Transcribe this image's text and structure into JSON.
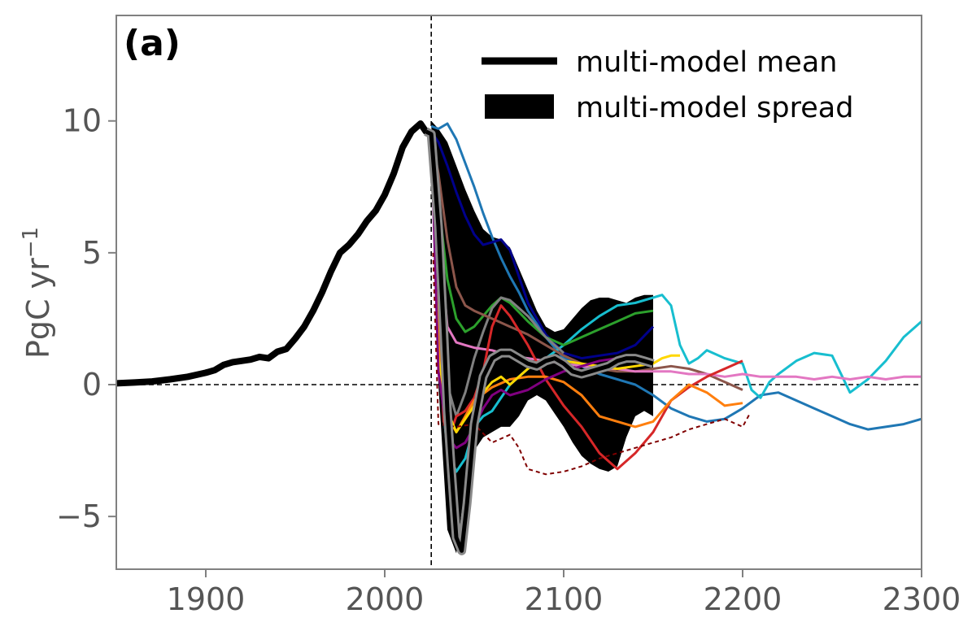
{
  "chart_data": {
    "type": "line",
    "panel_label": "(a)",
    "ylabel_main": "PgC yr",
    "ylabel_sup": "−1",
    "xlim": [
      1850,
      2300
    ],
    "ylim": [
      -7,
      14
    ],
    "x_ticks": [
      1900,
      2000,
      2100,
      2200,
      2300
    ],
    "x_tick_labels": [
      "1900",
      "2000",
      "2100",
      "2200",
      "2300"
    ],
    "y_ticks": [
      -5,
      0,
      5,
      10
    ],
    "y_tick_labels": [
      "−5",
      "0",
      "5",
      "10"
    ],
    "reference_lines": {
      "vertical_x": 2026,
      "horizontal_y": 0
    },
    "legend": {
      "placement": "top-right",
      "entries": [
        {
          "label": "multi-model mean",
          "kind": "line",
          "color": "#000000"
        },
        {
          "label": "multi-model spread",
          "kind": "patch",
          "color": "#000000"
        }
      ]
    },
    "spread": {
      "x": [
        2026,
        2030,
        2035,
        2040,
        2045,
        2050,
        2055,
        2060,
        2065,
        2070,
        2075,
        2080,
        2085,
        2090,
        2095,
        2100,
        2105,
        2110,
        2115,
        2120,
        2125,
        2130,
        2135,
        2140,
        2145,
        2150
      ],
      "upper": [
        10.0,
        9.7,
        9.2,
        8.3,
        7.4,
        6.6,
        5.9,
        5.6,
        5.5,
        5.2,
        4.4,
        3.6,
        2.8,
        2.2,
        2.0,
        2.1,
        2.5,
        2.9,
        3.2,
        3.3,
        3.3,
        3.2,
        3.1,
        3.3,
        3.4,
        3.4
      ],
      "lower": [
        10.0,
        0.0,
        -5.5,
        -6.4,
        -3.8,
        -2.5,
        -2.0,
        -1.8,
        -1.6,
        -1.6,
        -1.2,
        -0.6,
        -0.4,
        -0.6,
        -1.1,
        -1.6,
        -2.2,
        -2.7,
        -3.0,
        -3.2,
        -3.3,
        -3.1,
        -2.0,
        -1.2,
        -1.0,
        -1.2
      ]
    },
    "historical": {
      "x": [
        1850,
        1860,
        1870,
        1880,
        1890,
        1900,
        1905,
        1910,
        1915,
        1920,
        1925,
        1930,
        1935,
        1940,
        1945,
        1950,
        1955,
        1960,
        1965,
        1970,
        1975,
        1980,
        1985,
        1990,
        1995,
        2000,
        2005,
        2010,
        2015,
        2020,
        2023
      ],
      "y": [
        0.05,
        0.08,
        0.12,
        0.2,
        0.3,
        0.45,
        0.55,
        0.75,
        0.85,
        0.9,
        0.95,
        1.05,
        1.0,
        1.25,
        1.35,
        1.75,
        2.2,
        2.8,
        3.5,
        4.3,
        5.0,
        5.3,
        5.7,
        6.2,
        6.6,
        7.2,
        8.0,
        9.0,
        9.6,
        9.9,
        9.6
      ]
    },
    "series": [
      {
        "color": "#1f77b4",
        "x": [
          2026,
          2030,
          2035,
          2040,
          2045,
          2050,
          2055,
          2060,
          2065,
          2070,
          2075,
          2080,
          2090,
          2100,
          2110,
          2120,
          2130,
          2140,
          2150,
          2160,
          2170,
          2180,
          2190,
          2200,
          2210,
          2220,
          2230,
          2240,
          2250,
          2260,
          2270,
          2280,
          2290,
          2300
        ],
        "y": [
          9.8,
          9.7,
          9.9,
          9.3,
          8.4,
          7.5,
          6.5,
          5.6,
          4.8,
          4.1,
          3.5,
          2.8,
          1.8,
          1.0,
          0.7,
          0.4,
          0.2,
          0.0,
          -0.4,
          -0.9,
          -1.2,
          -1.4,
          -1.3,
          -0.9,
          -0.4,
          -0.3,
          -0.6,
          -0.9,
          -1.2,
          -1.5,
          -1.7,
          -1.6,
          -1.5,
          -1.3
        ]
      },
      {
        "color": "#00008b",
        "x": [
          2026,
          2030,
          2035,
          2040,
          2045,
          2050,
          2055,
          2060,
          2065,
          2070,
          2075,
          2080,
          2090,
          2100,
          2110,
          2120,
          2130,
          2140,
          2150
        ],
        "y": [
          9.6,
          9.2,
          8.3,
          7.3,
          6.4,
          5.7,
          5.3,
          5.4,
          5.5,
          5.1,
          4.1,
          3.1,
          1.9,
          1.2,
          1.0,
          1.1,
          1.2,
          1.5,
          2.2
        ]
      },
      {
        "color": "#17becf",
        "x": [
          2026,
          2030,
          2035,
          2040,
          2045,
          2050,
          2055,
          2060,
          2070,
          2080,
          2090,
          2100,
          2110,
          2120,
          2130,
          2140,
          2150,
          2155,
          2160,
          2165,
          2170,
          2175,
          2180,
          2190,
          2200,
          2205,
          2210,
          2215,
          2220,
          2230,
          2240,
          2250,
          2260,
          2270,
          2280,
          2290,
          2300
        ],
        "y": [
          9.5,
          1.0,
          -2.5,
          -3.3,
          -2.8,
          -1.6,
          -1.2,
          -1.0,
          0.0,
          0.6,
          1.0,
          1.5,
          2.1,
          2.6,
          3.0,
          3.1,
          3.3,
          3.4,
          3.0,
          1.5,
          0.8,
          1.0,
          1.3,
          1.0,
          0.8,
          -0.2,
          -0.5,
          0.1,
          0.4,
          0.9,
          1.2,
          1.1,
          -0.3,
          0.2,
          0.9,
          1.8,
          2.4
        ]
      },
      {
        "color": "#2ca02c",
        "x": [
          2026,
          2030,
          2035,
          2040,
          2045,
          2050,
          2060,
          2065,
          2070,
          2080,
          2090,
          2100,
          2110,
          2120,
          2130,
          2140,
          2150
        ],
        "y": [
          9.5,
          7.0,
          4.0,
          2.5,
          2.0,
          2.2,
          3.0,
          3.3,
          3.1,
          2.4,
          1.8,
          1.5,
          1.8,
          2.1,
          2.4,
          2.7,
          2.8
        ]
      },
      {
        "color": "#808080",
        "x": [
          2026,
          2030,
          2035,
          2040,
          2045,
          2050,
          2055,
          2060,
          2065,
          2070,
          2080,
          2090,
          2100
        ],
        "y": [
          9.4,
          5.0,
          0.0,
          -1.2,
          -0.3,
          1.0,
          2.0,
          2.9,
          3.3,
          3.2,
          2.6,
          1.8,
          1.2
        ]
      },
      {
        "color": "#8c564b",
        "x": [
          2026,
          2030,
          2035,
          2040,
          2045,
          2050,
          2060,
          2070,
          2080,
          2090,
          2100,
          2110,
          2120,
          2130,
          2140,
          2150,
          2160,
          2170,
          2180,
          2190,
          2200
        ],
        "y": [
          9.5,
          8.0,
          5.5,
          3.7,
          3.0,
          2.8,
          2.5,
          2.2,
          1.9,
          1.5,
          1.1,
          0.8,
          0.6,
          0.5,
          0.5,
          0.6,
          0.7,
          0.6,
          0.4,
          0.1,
          -0.2
        ]
      },
      {
        "color": "#e377c2",
        "x": [
          2026,
          2030,
          2035,
          2040,
          2045,
          2050,
          2060,
          2070,
          2080,
          2090,
          2100,
          2110,
          2120,
          2130,
          2140,
          2150,
          2160,
          2170,
          2180,
          2190,
          2200,
          2210,
          2220,
          2230,
          2240,
          2250,
          2260,
          2270,
          2280,
          2290,
          2300
        ],
        "y": [
          9.5,
          6.0,
          2.2,
          1.6,
          1.5,
          1.4,
          1.3,
          1.1,
          1.0,
          0.9,
          0.8,
          0.7,
          0.6,
          0.6,
          0.5,
          0.5,
          0.5,
          0.4,
          0.4,
          0.3,
          0.4,
          0.3,
          0.3,
          0.3,
          0.2,
          0.3,
          0.2,
          0.3,
          0.2,
          0.3,
          0.3
        ]
      },
      {
        "color": "#d62728",
        "x": [
          2026,
          2030,
          2033,
          2036,
          2040,
          2045,
          2050,
          2055,
          2060,
          2065,
          2070,
          2080,
          2090,
          2100,
          2110,
          2120,
          2130,
          2140,
          2150,
          2160,
          2170,
          2180,
          2190,
          2200
        ],
        "y": [
          9.5,
          2.0,
          -1.4,
          -2.0,
          -1.2,
          -1.0,
          -0.5,
          0.5,
          2.2,
          3.0,
          2.6,
          1.5,
          0.2,
          -0.8,
          -1.6,
          -2.6,
          -3.2,
          -2.6,
          -1.8,
          -0.6,
          -0.1,
          0.3,
          0.6,
          0.9
        ]
      },
      {
        "color": "#ff7f0e",
        "x": [
          2026,
          2030,
          2035,
          2040,
          2045,
          2050,
          2060,
          2070,
          2080,
          2090,
          2100,
          2110,
          2120,
          2130,
          2140,
          2150,
          2160,
          2170,
          2180,
          2190,
          2200
        ],
        "y": [
          9.5,
          1.5,
          -1.2,
          -1.8,
          -1.2,
          -0.6,
          -0.1,
          0.2,
          0.3,
          0.3,
          0.1,
          -0.4,
          -1.2,
          -1.4,
          -1.6,
          -1.4,
          -0.6,
          0.0,
          -0.3,
          -0.8,
          -0.7
        ]
      },
      {
        "color": "#ffd700",
        "x": [
          2026,
          2030,
          2035,
          2040,
          2045,
          2050,
          2055,
          2060,
          2065,
          2070,
          2080,
          2090,
          2100,
          2110,
          2120,
          2130,
          2140,
          2150,
          2155,
          2160,
          2165
        ],
        "y": [
          9.5,
          1.0,
          -1.0,
          -1.8,
          -1.3,
          -0.8,
          -0.3,
          0.1,
          0.3,
          0.0,
          0.6,
          1.0,
          0.9,
          0.8,
          0.7,
          0.6,
          0.7,
          0.8,
          1.0,
          1.1,
          1.1
        ]
      },
      {
        "color": "#800080",
        "x": [
          2026,
          2030,
          2035,
          2040,
          2045,
          2050,
          2055,
          2060,
          2065,
          2070,
          2080,
          2090,
          2100,
          2110,
          2120,
          2130,
          2140,
          2150
        ],
        "y": [
          9.5,
          0.5,
          -2.0,
          -2.4,
          -2.2,
          -1.6,
          -0.9,
          -0.4,
          -0.2,
          -0.4,
          -0.2,
          0.2,
          0.5,
          0.7,
          0.9,
          1.0,
          1.0,
          0.9
        ]
      },
      {
        "color": "#800000",
        "dashed": true,
        "x": [
          2027,
          2030,
          2040,
          2050,
          2060,
          2070,
          2075,
          2080,
          2090,
          2100,
          2110,
          2120,
          2130,
          2140,
          2150,
          2160,
          2170,
          2180,
          2190,
          2200,
          2204
        ],
        "y": [
          5.0,
          -1.5,
          -1.6,
          -1.5,
          -2.2,
          -1.9,
          -2.4,
          -3.2,
          -3.4,
          -3.3,
          -3.1,
          -2.8,
          -2.6,
          -2.4,
          -2.2,
          -2.0,
          -1.7,
          -1.5,
          -1.3,
          -1.6,
          -1.1
        ]
      }
    ],
    "mean": {
      "x": [
        2023,
        2026,
        2030,
        2033,
        2035,
        2037,
        2040,
        2043,
        2046,
        2050,
        2055,
        2060,
        2065,
        2070,
        2075,
        2080,
        2085,
        2090,
        2095,
        2100,
        2105,
        2110,
        2115,
        2120,
        2125,
        2130,
        2135,
        2140,
        2145,
        2150
      ],
      "y": [
        9.6,
        9.5,
        6.0,
        2.0,
        -1.0,
        -3.0,
        -5.8,
        -6.3,
        -4.5,
        -1.5,
        0.3,
        1.0,
        1.2,
        1.2,
        1.0,
        0.8,
        0.7,
        0.9,
        1.0,
        0.8,
        0.5,
        0.4,
        0.5,
        0.6,
        0.7,
        0.9,
        1.0,
        1.0,
        0.9,
        0.8
      ]
    }
  }
}
